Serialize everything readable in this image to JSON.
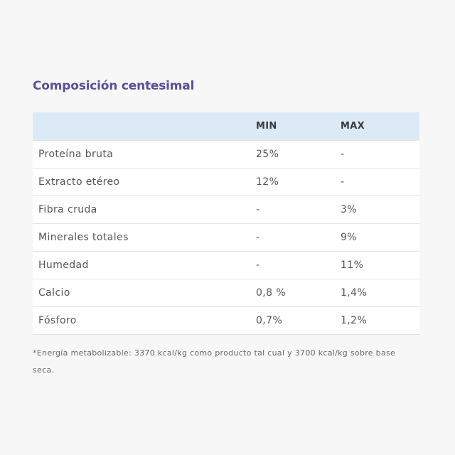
{
  "title": "Composición centesimal",
  "table": {
    "headers": [
      "",
      "MIN",
      "MAX"
    ],
    "rows": [
      {
        "name": "Proteína bruta",
        "min": "25%",
        "max": "-"
      },
      {
        "name": "Extracto etéreo",
        "min": "12%",
        "max": "-"
      },
      {
        "name": "Fibra cruda",
        "min": "-",
        "max": "3%"
      },
      {
        "name": "Minerales totales",
        "min": "-",
        "max": "9%"
      },
      {
        "name": "Humedad",
        "min": "-",
        "max": "11%"
      },
      {
        "name": "Calcio",
        "min": "0,8 %",
        "max": "1,4%"
      },
      {
        "name": "Fósforo",
        "min": "0,7%",
        "max": "1,2%"
      }
    ]
  },
  "footnote": "*Energía metabolizable: 3370 kcal/kg como producto tal cual y 3700 kcal/kg sobre base seca.",
  "colors": {
    "title": "#5c4f9a",
    "header_bg": "#dceaf8",
    "page_bg": "#f7f7f7"
  }
}
